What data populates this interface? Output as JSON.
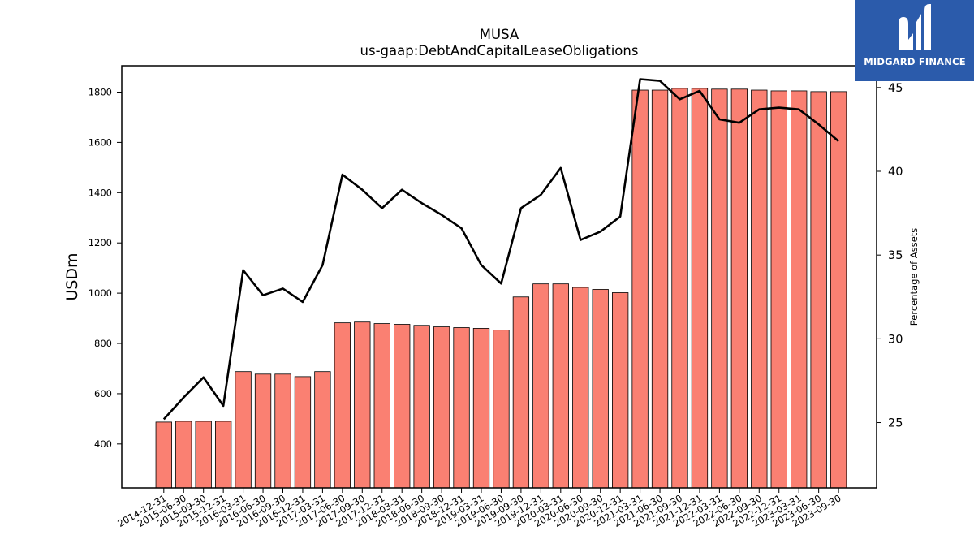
{
  "brand": {
    "name": "MIDGARD FINANCE",
    "logo_icon": "midgard-m-icon",
    "background_color": "#2b5bab"
  },
  "chart_data": {
    "type": "bar",
    "title": "MUSA",
    "subtitle": "us-gaap:DebtAndCapitalLeaseObligations",
    "ylabel": "USDm",
    "y2label": "Percentage of Assets",
    "ylim": [
      225,
      1905
    ],
    "y2lim": [
      21.1,
      46.3
    ],
    "yticks": [
      400,
      600,
      800,
      1000,
      1200,
      1400,
      1600,
      1800
    ],
    "y2ticks": [
      25,
      30,
      35,
      40,
      45
    ],
    "bar_color": "#fa8072",
    "line_color": "#000000",
    "grid": false,
    "categories": [
      "2014-12-31",
      "2015-06-30",
      "2015-09-30",
      "2015-12-31",
      "2016-03-31",
      "2016-06-30",
      "2016-09-30",
      "2016-12-31",
      "2017-03-31",
      "2017-06-30",
      "2017-09-30",
      "2017-12-31",
      "2018-03-31",
      "2018-06-30",
      "2018-09-30",
      "2018-12-31",
      "2019-03-31",
      "2019-06-30",
      "2019-09-30",
      "2019-12-31",
      "2020-03-31",
      "2020-06-30",
      "2020-09-30",
      "2020-12-31",
      "2021-03-31",
      "2021-06-30",
      "2021-09-30",
      "2021-12-31",
      "2022-03-31",
      "2022-06-30",
      "2022-09-30",
      "2022-12-31",
      "2023-03-31",
      "2023-06-30",
      "2023-09-30"
    ],
    "series": [
      {
        "kind": "bar",
        "axis": "left",
        "values": [
          487,
          490,
          490,
          490,
          688,
          678,
          678,
          668,
          688,
          882,
          885,
          879,
          876,
          872,
          866,
          863,
          860,
          853,
          985,
          1037,
          1037,
          1023,
          1015,
          1002,
          1808,
          1808,
          1815,
          1815,
          1812,
          1812,
          1808,
          1805,
          1805,
          1802,
          1802
        ]
      },
      {
        "kind": "line",
        "axis": "right",
        "values": [
          25.2,
          26.5,
          27.7,
          26.0,
          34.1,
          32.6,
          33.0,
          32.2,
          34.4,
          39.8,
          38.9,
          37.8,
          38.9,
          38.1,
          37.4,
          36.6,
          34.4,
          33.3,
          37.8,
          38.6,
          40.2,
          35.9,
          36.4,
          37.3,
          45.5,
          45.4,
          44.3,
          44.8,
          43.1,
          42.9,
          43.7,
          43.8,
          43.7,
          42.8,
          41.8
        ]
      }
    ]
  }
}
